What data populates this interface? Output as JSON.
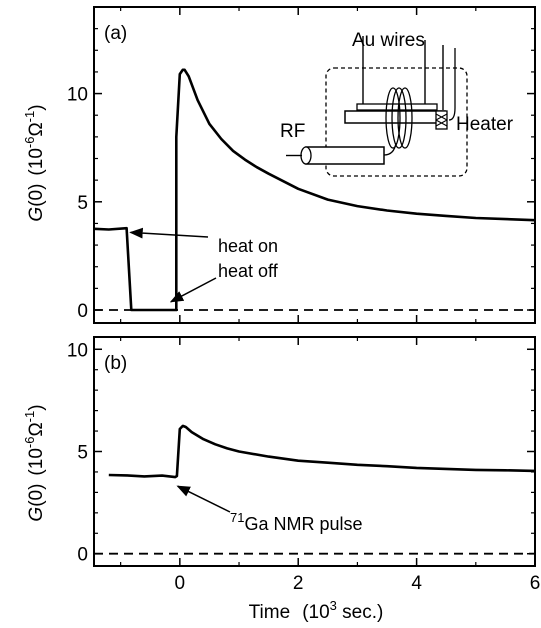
{
  "chart_data": [
    {
      "panel": "(a)",
      "type": "line",
      "xlim": [
        -1.45,
        6
      ],
      "ylim": [
        -0.6,
        14
      ],
      "x_ticks": [
        0,
        2,
        4,
        6
      ],
      "y_ticks": [
        0,
        5,
        10
      ],
      "series": [
        {
          "values_x": [
            -1.45,
            -1.2,
            -0.9,
            -0.82,
            -0.06,
            -0.06,
            0.0,
            0.05,
            0.08,
            0.15,
            0.3,
            0.5,
            0.7,
            0.9,
            1.1,
            1.3,
            1.5,
            2.0,
            2.5,
            3.0,
            3.5,
            4.0,
            4.5,
            5.0,
            5.5,
            6.0
          ],
          "values_y": [
            3.75,
            3.72,
            3.78,
            0.0,
            0.0,
            8.0,
            10.9,
            11.1,
            11.1,
            10.8,
            9.7,
            8.6,
            7.9,
            7.35,
            6.95,
            6.6,
            6.3,
            5.6,
            5.1,
            4.8,
            4.6,
            4.45,
            4.35,
            4.25,
            4.2,
            4.15
          ]
        },
        {
          "style": "dashed",
          "values_x": [
            -1.45,
            6
          ],
          "values_y": [
            0,
            0
          ]
        }
      ],
      "annotations": [
        {
          "text": "heat on",
          "arrow_to": [
            -0.9,
            3.4
          ]
        },
        {
          "text": "heat off",
          "arrow_to": [
            -0.2,
            0.2
          ]
        }
      ],
      "inset_labels": {
        "wires": "Au wires",
        "rf": "RF",
        "heater": "Heater"
      }
    },
    {
      "panel": "(b)",
      "type": "line",
      "xlim": [
        -1.45,
        6
      ],
      "ylim": [
        -0.6,
        10.6
      ],
      "x_ticks": [
        0,
        2,
        4,
        6
      ],
      "y_ticks": [
        0,
        5,
        10
      ],
      "series": [
        {
          "values_x": [
            -1.2,
            -0.9,
            -0.6,
            -0.3,
            -0.08,
            -0.05,
            0.0,
            0.05,
            0.1,
            0.2,
            0.4,
            0.6,
            0.8,
            1.0,
            1.5,
            2.0,
            2.5,
            3.0,
            3.5,
            4.0,
            4.5,
            5.0,
            5.5,
            6.0
          ],
          "values_y": [
            3.85,
            3.83,
            3.78,
            3.82,
            3.75,
            3.8,
            6.1,
            6.25,
            6.2,
            5.95,
            5.6,
            5.35,
            5.15,
            5.0,
            4.75,
            4.55,
            4.45,
            4.35,
            4.28,
            4.2,
            4.15,
            4.1,
            4.08,
            4.05
          ]
        },
        {
          "style": "dashed",
          "values_x": [
            -1.45,
            6
          ],
          "values_y": [
            0,
            0
          ]
        }
      ],
      "annotations": [
        {
          "text_sup": "71",
          "text": "Ga NMR pulse",
          "arrow_to": [
            -0.07,
            3.4
          ]
        }
      ]
    }
  ],
  "axis_text": {
    "xlabel": "Time",
    "xunit_open": "(10",
    "xunit_exp": "3",
    "xunit_close": " sec.)",
    "ylabel_g": "G",
    "ylabel_arg": "(0)",
    "yunit_open": "(10",
    "yunit_exp": "-6",
    "yunit_omega": "Ω",
    "yunit_exp2": "-1",
    "yunit_close": ")"
  }
}
